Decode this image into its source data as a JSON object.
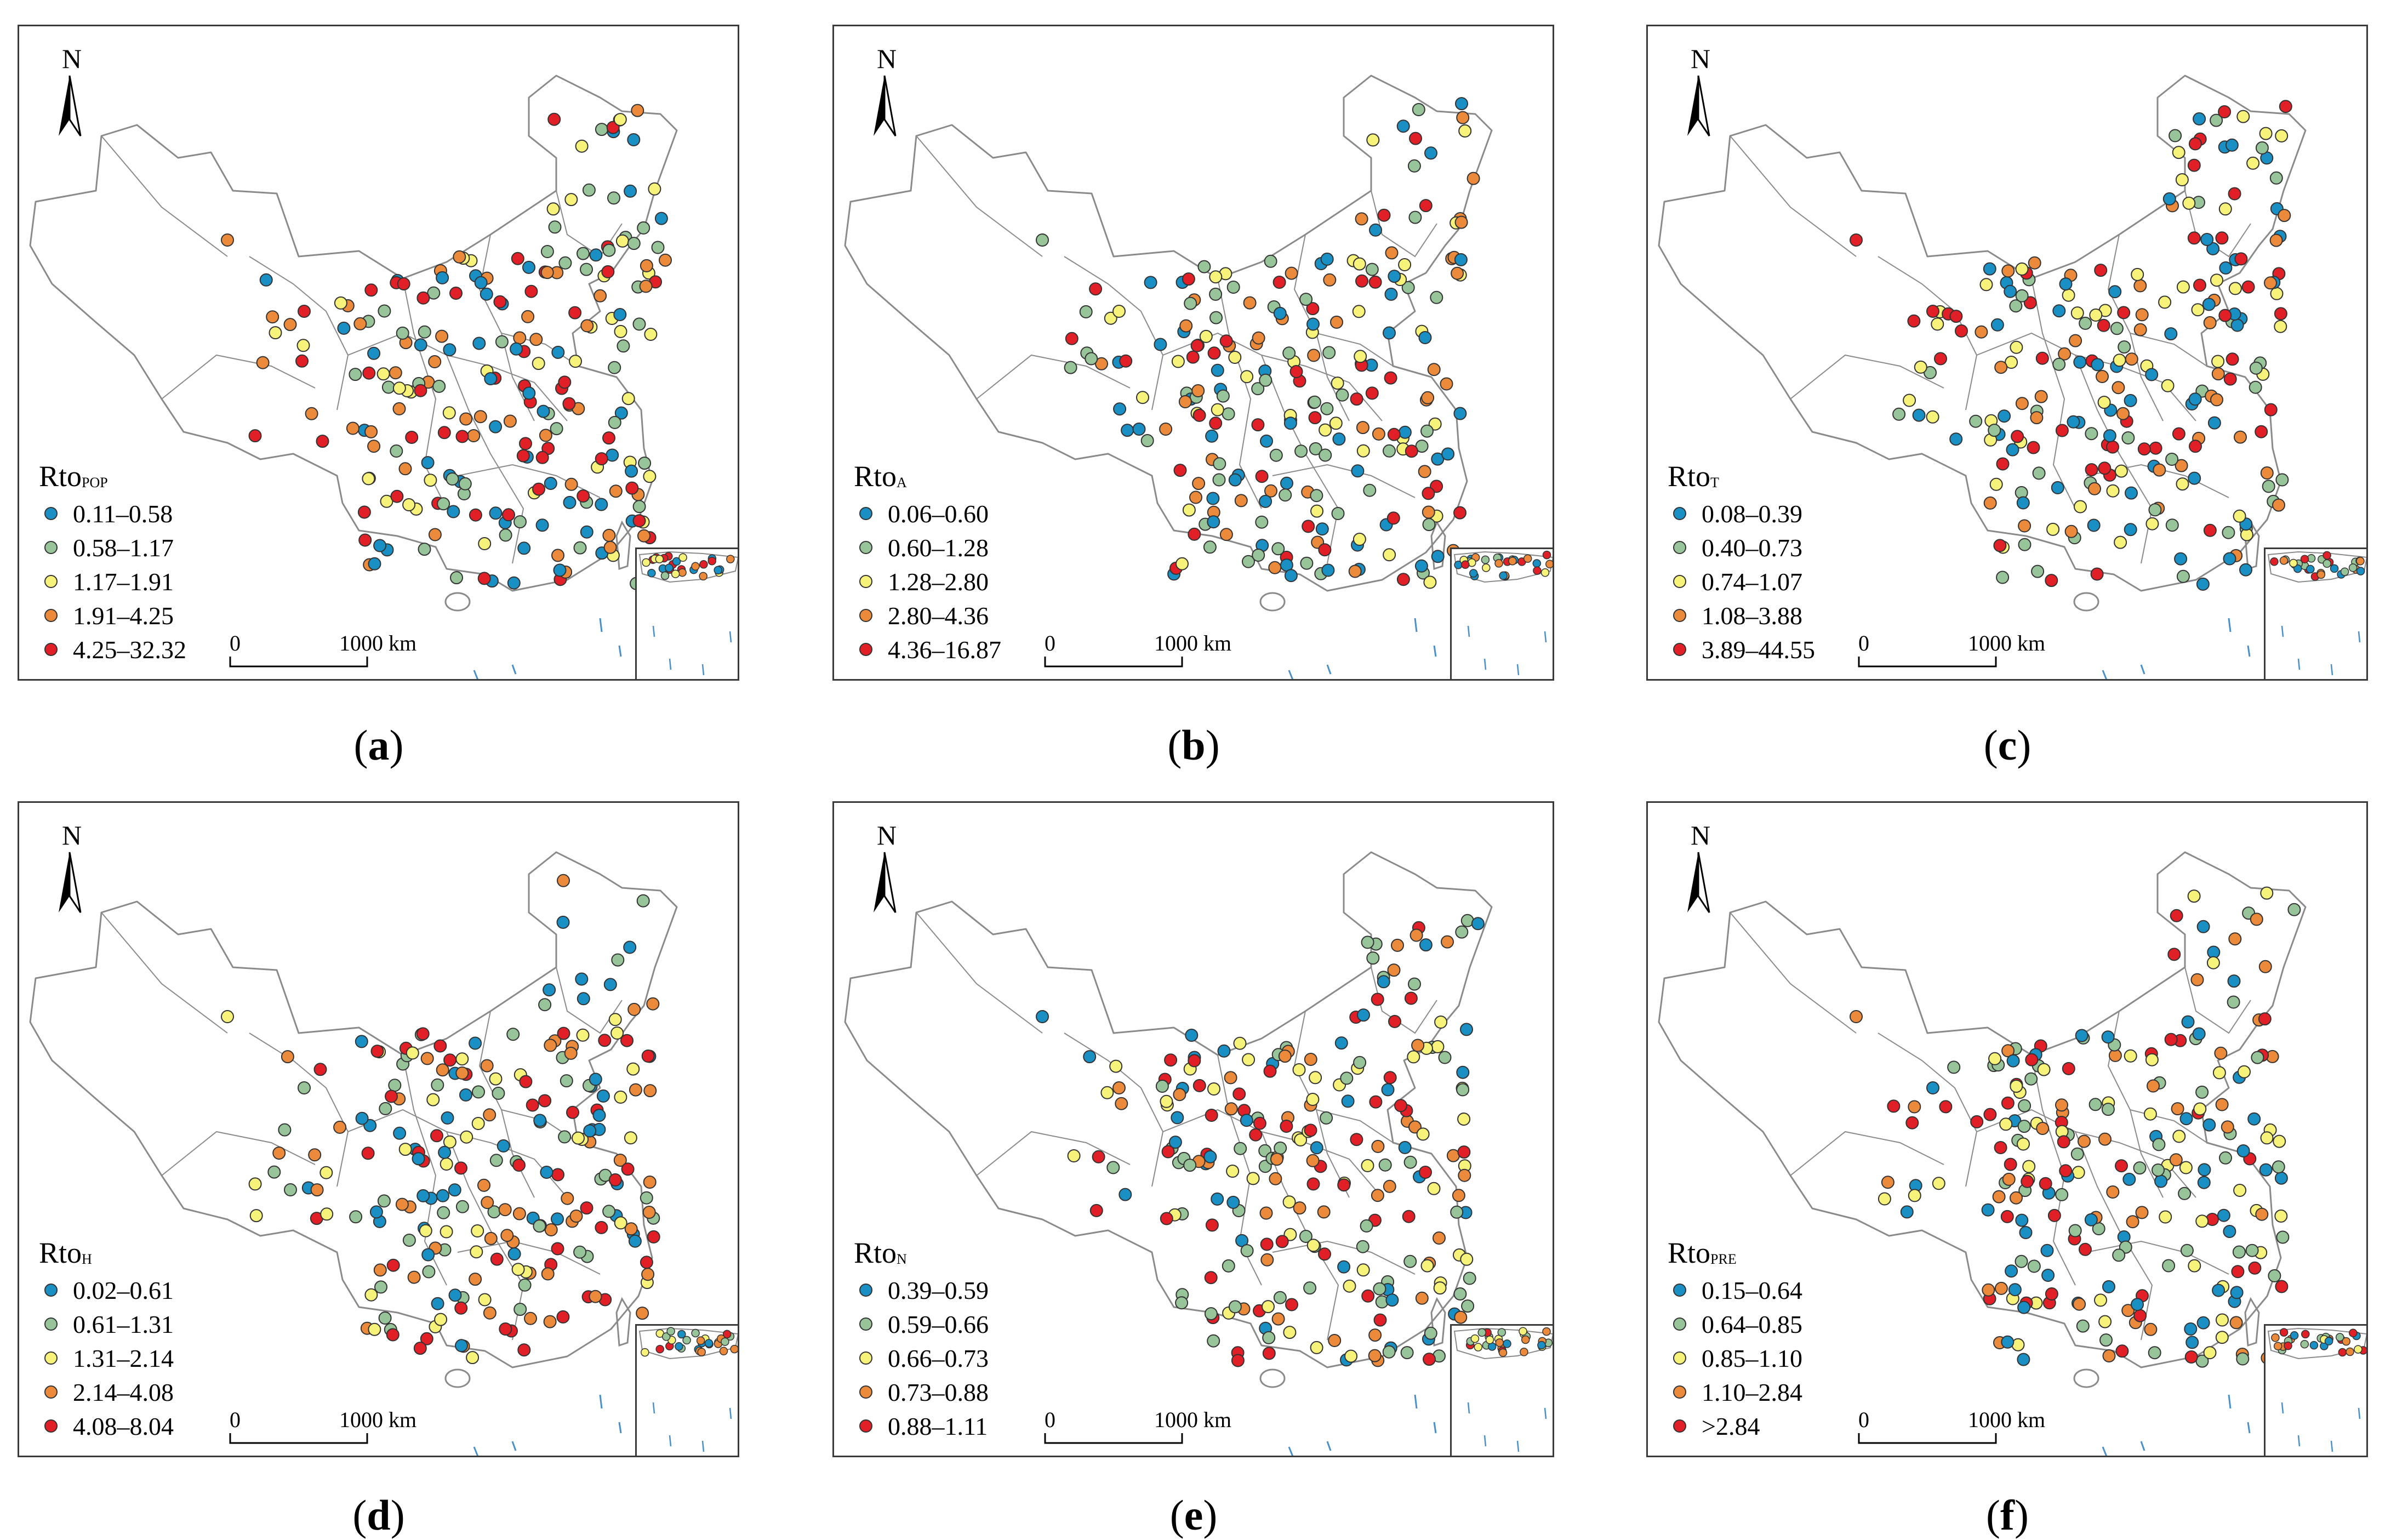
{
  "map_common": {
    "north_label": "N",
    "scale_zero": "0",
    "scale_label": "1000 km"
  },
  "panels": [
    {
      "caption_letter": "a",
      "legend_title_main": "Rto",
      "legend_title_sub": "POP",
      "classes": [
        "0.11–0.58",
        "0.58–1.17",
        "1.17–1.91",
        "1.91–4.25",
        "4.25–32.32"
      ]
    },
    {
      "caption_letter": "b",
      "legend_title_main": "Rto",
      "legend_title_sub": "A",
      "classes": [
        "0.06–0.60",
        "0.60–1.28",
        "1.28–2.80",
        "2.80–4.36",
        "4.36–16.87"
      ]
    },
    {
      "caption_letter": "c",
      "legend_title_main": "Rto",
      "legend_title_sub": "T",
      "classes": [
        "0.08–0.39",
        "0.40–0.73",
        "0.74–1.07",
        "1.08–3.88",
        "3.89–44.55"
      ]
    },
    {
      "caption_letter": "d",
      "legend_title_main": "Rto",
      "legend_title_sub": "H",
      "classes": [
        "0.02–0.61",
        "0.61–1.31",
        "1.31–2.14",
        "2.14–4.08",
        "4.08–8.04"
      ]
    },
    {
      "caption_letter": "e",
      "legend_title_main": "Rto",
      "legend_title_sub": "N",
      "classes": [
        "0.39–0.59",
        "0.59–0.66",
        "0.66–0.73",
        "0.73–0.88",
        "0.88–1.11"
      ]
    },
    {
      "caption_letter": "f",
      "legend_title_main": "Rto",
      "legend_title_sub": "PRE",
      "classes": [
        "0.15–0.64",
        "0.64–0.85",
        "0.85–1.10",
        "1.10–2.84",
        ">2.84"
      ]
    }
  ],
  "class_colors": [
    "#1a8fc4",
    "#98c49a",
    "#f6f27a",
    "#ec8a3c",
    "#e01f26"
  ],
  "outline_color": "#8a8a8a"
}
